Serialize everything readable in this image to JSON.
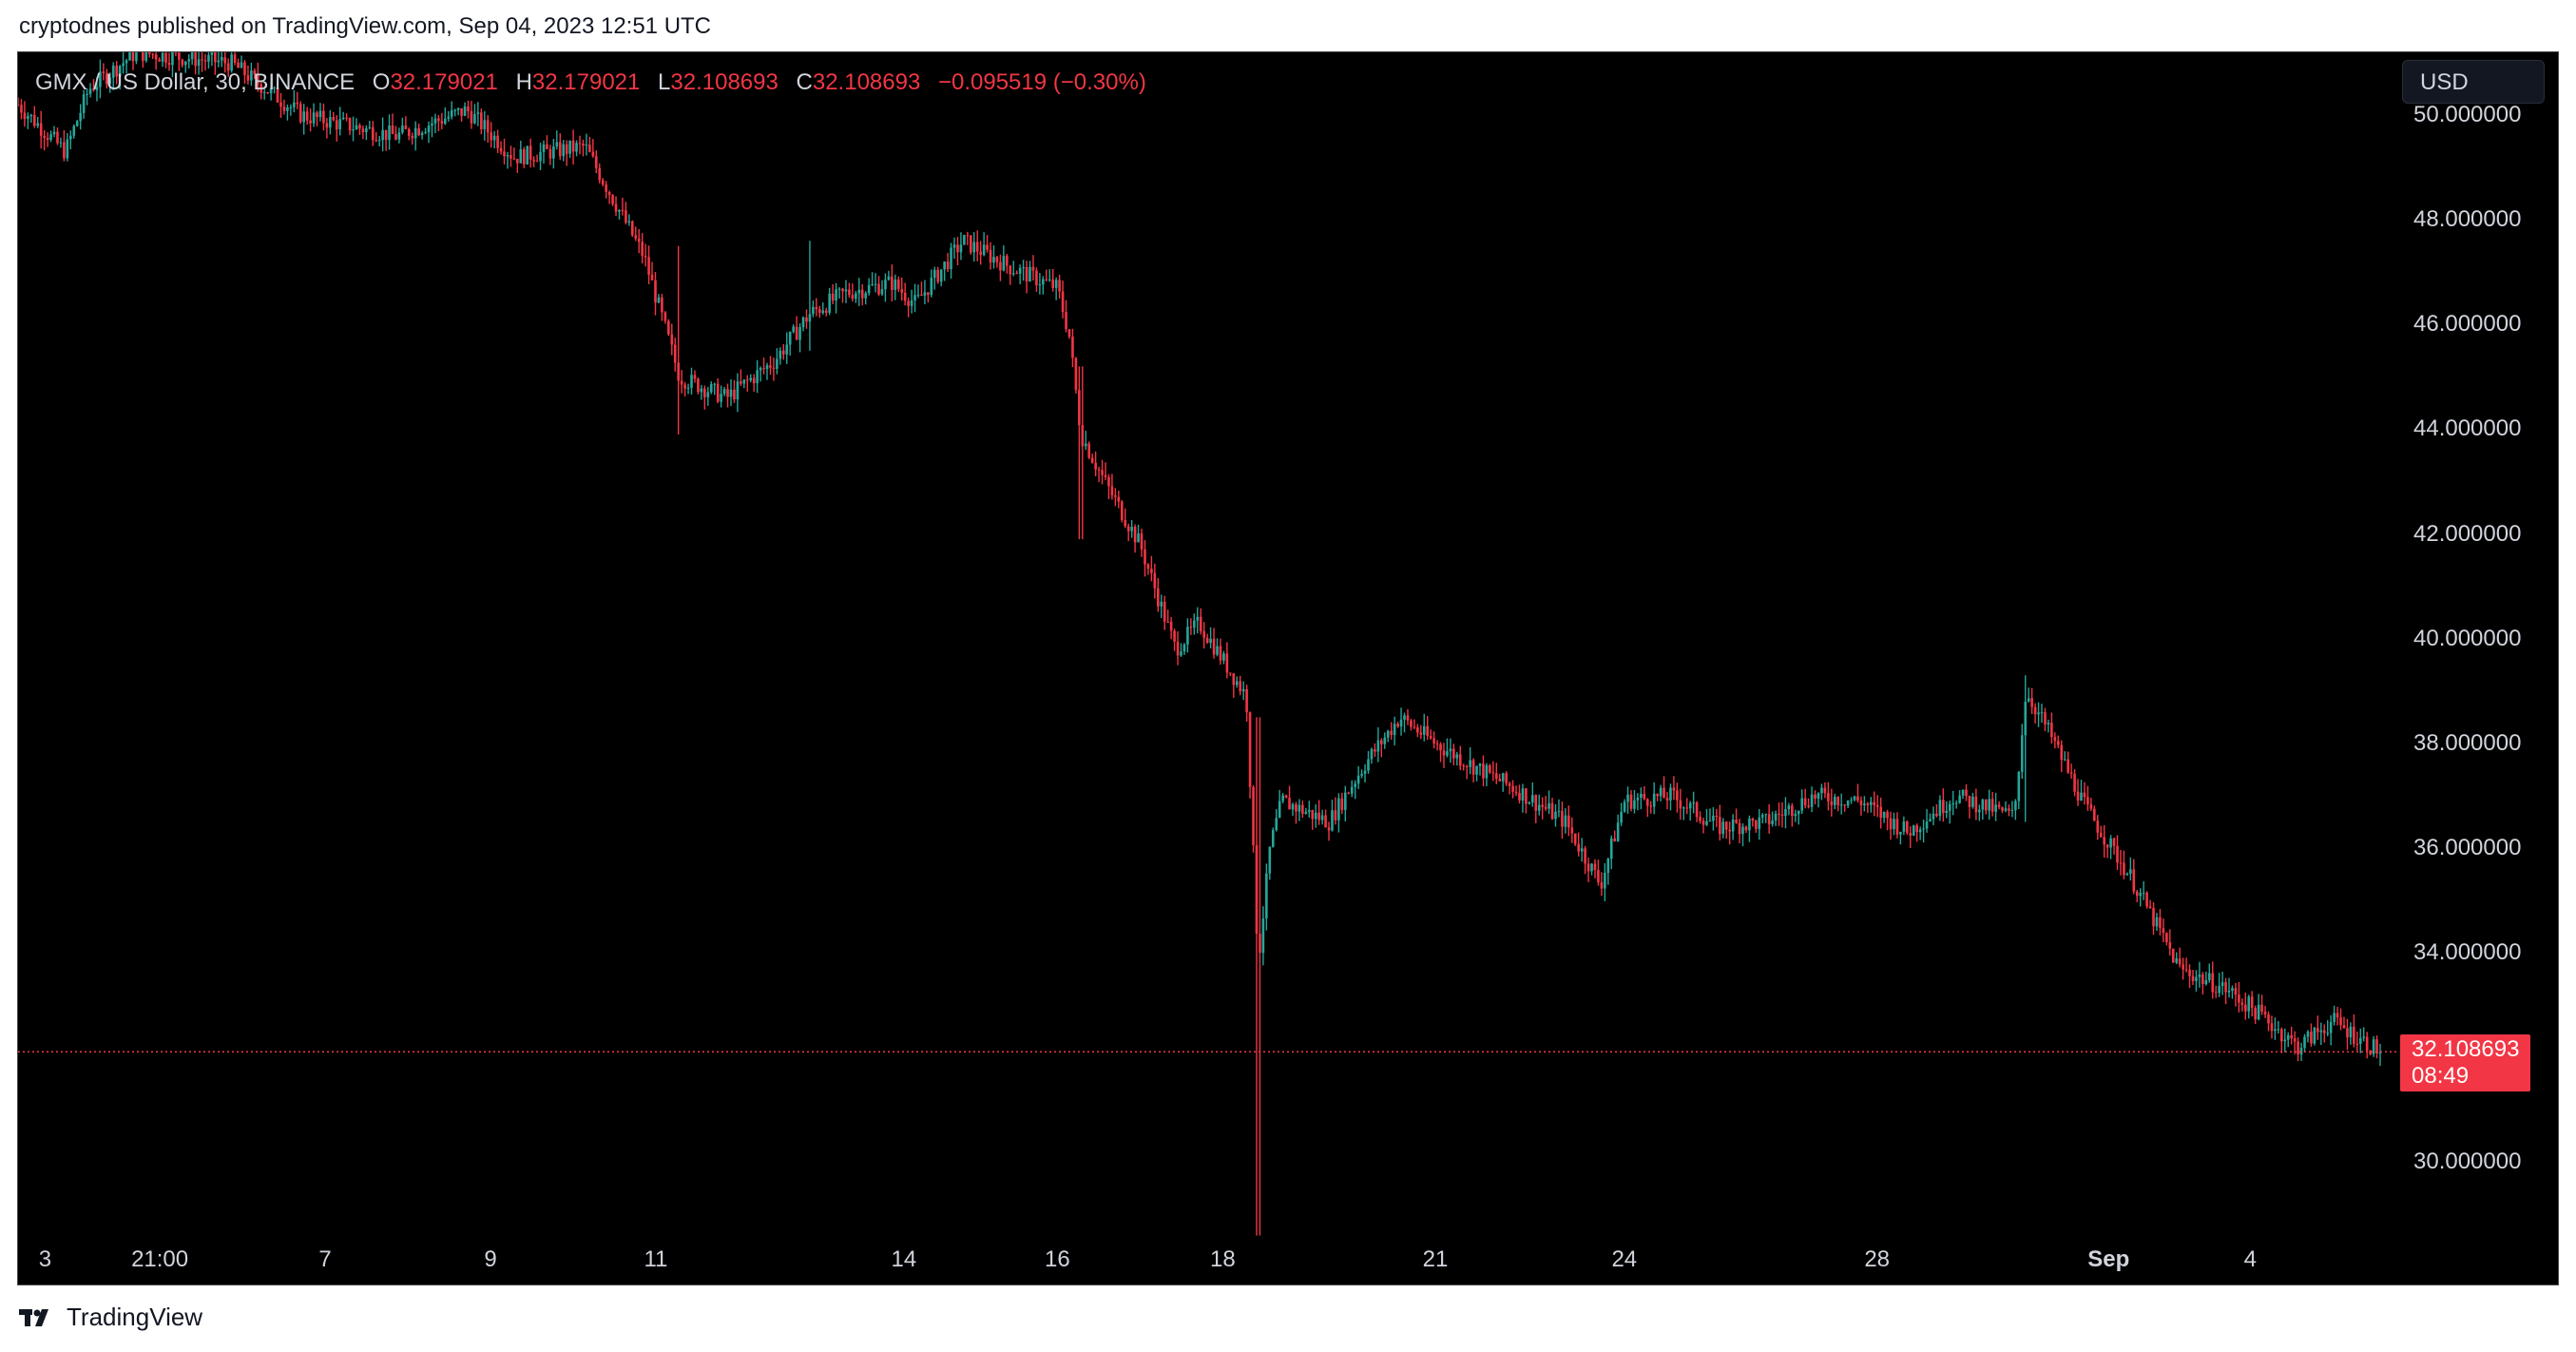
{
  "header": {
    "published_text": "cryptodnes published on TradingView.com, Sep 04, 2023 12:51 UTC"
  },
  "legend": {
    "symbol": "GMX / US Dollar, 30, BINANCE",
    "o_label": "O",
    "o_value": "32.179021",
    "h_label": "H",
    "h_value": "32.179021",
    "l_label": "L",
    "l_value": "32.108693",
    "c_label": "C",
    "c_value": "32.108693",
    "change": "−0.095519 (−0.30%)"
  },
  "currency_button": "USD",
  "last_price": {
    "value": "32.108693",
    "countdown": "08:49"
  },
  "footer": {
    "brand": "TradingView"
  },
  "colors": {
    "up": "#26a69a",
    "down": "#f23645",
    "background": "#000000",
    "text": "#d1d4dc"
  },
  "chart_data": {
    "type": "candlestick",
    "title": "GMX / US Dollar, 30, BINANCE",
    "y_ticks": [
      "50.000000",
      "48.000000",
      "46.000000",
      "44.000000",
      "42.000000",
      "40.000000",
      "38.000000",
      "36.000000",
      "34.000000",
      "30.000000"
    ],
    "x_ticks": [
      {
        "label": "3",
        "bold": false
      },
      {
        "label": "21:00",
        "bold": false
      },
      {
        "label": "7",
        "bold": false
      },
      {
        "label": "9",
        "bold": false
      },
      {
        "label": "11",
        "bold": false
      },
      {
        "label": "14",
        "bold": false
      },
      {
        "label": "16",
        "bold": false
      },
      {
        "label": "18",
        "bold": false
      },
      {
        "label": "21",
        "bold": false
      },
      {
        "label": "24",
        "bold": false
      },
      {
        "label": "28",
        "bold": false
      },
      {
        "label": "Sep",
        "bold": true
      },
      {
        "label": "4",
        "bold": false
      }
    ],
    "ylim": [
      28.5,
      51.2
    ],
    "last_price": 32.108693,
    "path": [
      [
        0.0,
        50.2
      ],
      [
        0.02,
        49.3
      ],
      [
        0.03,
        50.5
      ],
      [
        0.05,
        51.2
      ],
      [
        0.09,
        51.0
      ],
      [
        0.12,
        50.0
      ],
      [
        0.16,
        49.6
      ],
      [
        0.19,
        50.1
      ],
      [
        0.21,
        49.2
      ],
      [
        0.24,
        49.4
      ],
      [
        0.265,
        47.3
      ],
      [
        0.28,
        45.0
      ],
      [
        0.3,
        44.6
      ],
      [
        0.32,
        45.3
      ],
      [
        0.335,
        46.2
      ],
      [
        0.35,
        46.6
      ],
      [
        0.37,
        46.8
      ],
      [
        0.38,
        46.4
      ],
      [
        0.4,
        47.6
      ],
      [
        0.42,
        47.1
      ],
      [
        0.44,
        46.7
      ],
      [
        0.445,
        45.8
      ],
      [
        0.45,
        43.9
      ],
      [
        0.46,
        43.0
      ],
      [
        0.475,
        41.8
      ],
      [
        0.49,
        39.8
      ],
      [
        0.5,
        40.3
      ],
      [
        0.51,
        39.6
      ],
      [
        0.52,
        38.9
      ],
      [
        0.525,
        33.8
      ],
      [
        0.53,
        36.0
      ],
      [
        0.535,
        36.9
      ],
      [
        0.555,
        36.5
      ],
      [
        0.57,
        37.6
      ],
      [
        0.585,
        38.5
      ],
      [
        0.6,
        38.0
      ],
      [
        0.615,
        37.6
      ],
      [
        0.635,
        37.1
      ],
      [
        0.655,
        36.5
      ],
      [
        0.67,
        35.3
      ],
      [
        0.68,
        36.9
      ],
      [
        0.7,
        37.0
      ],
      [
        0.72,
        36.4
      ],
      [
        0.74,
        36.5
      ],
      [
        0.76,
        37.0
      ],
      [
        0.78,
        36.9
      ],
      [
        0.8,
        36.3
      ],
      [
        0.82,
        37.0
      ],
      [
        0.845,
        36.6
      ],
      [
        0.85,
        39.0
      ],
      [
        0.86,
        38.2
      ],
      [
        0.875,
        36.8
      ],
      [
        0.895,
        35.4
      ],
      [
        0.915,
        33.7
      ],
      [
        0.935,
        33.3
      ],
      [
        0.95,
        32.8
      ],
      [
        0.965,
        32.2
      ],
      [
        0.98,
        32.7
      ],
      [
        1.0,
        32.108693
      ]
    ],
    "wick_extremes": [
      {
        "x": 0.525,
        "low": 28.6,
        "high": 38.5
      },
      {
        "x": 0.45,
        "low": 41.9,
        "high": 45.2
      },
      {
        "x": 0.28,
        "low": 43.9,
        "high": 47.5
      },
      {
        "x": 0.335,
        "low": 45.5,
        "high": 47.6
      },
      {
        "x": 0.85,
        "low": 36.5,
        "high": 39.3
      }
    ]
  }
}
